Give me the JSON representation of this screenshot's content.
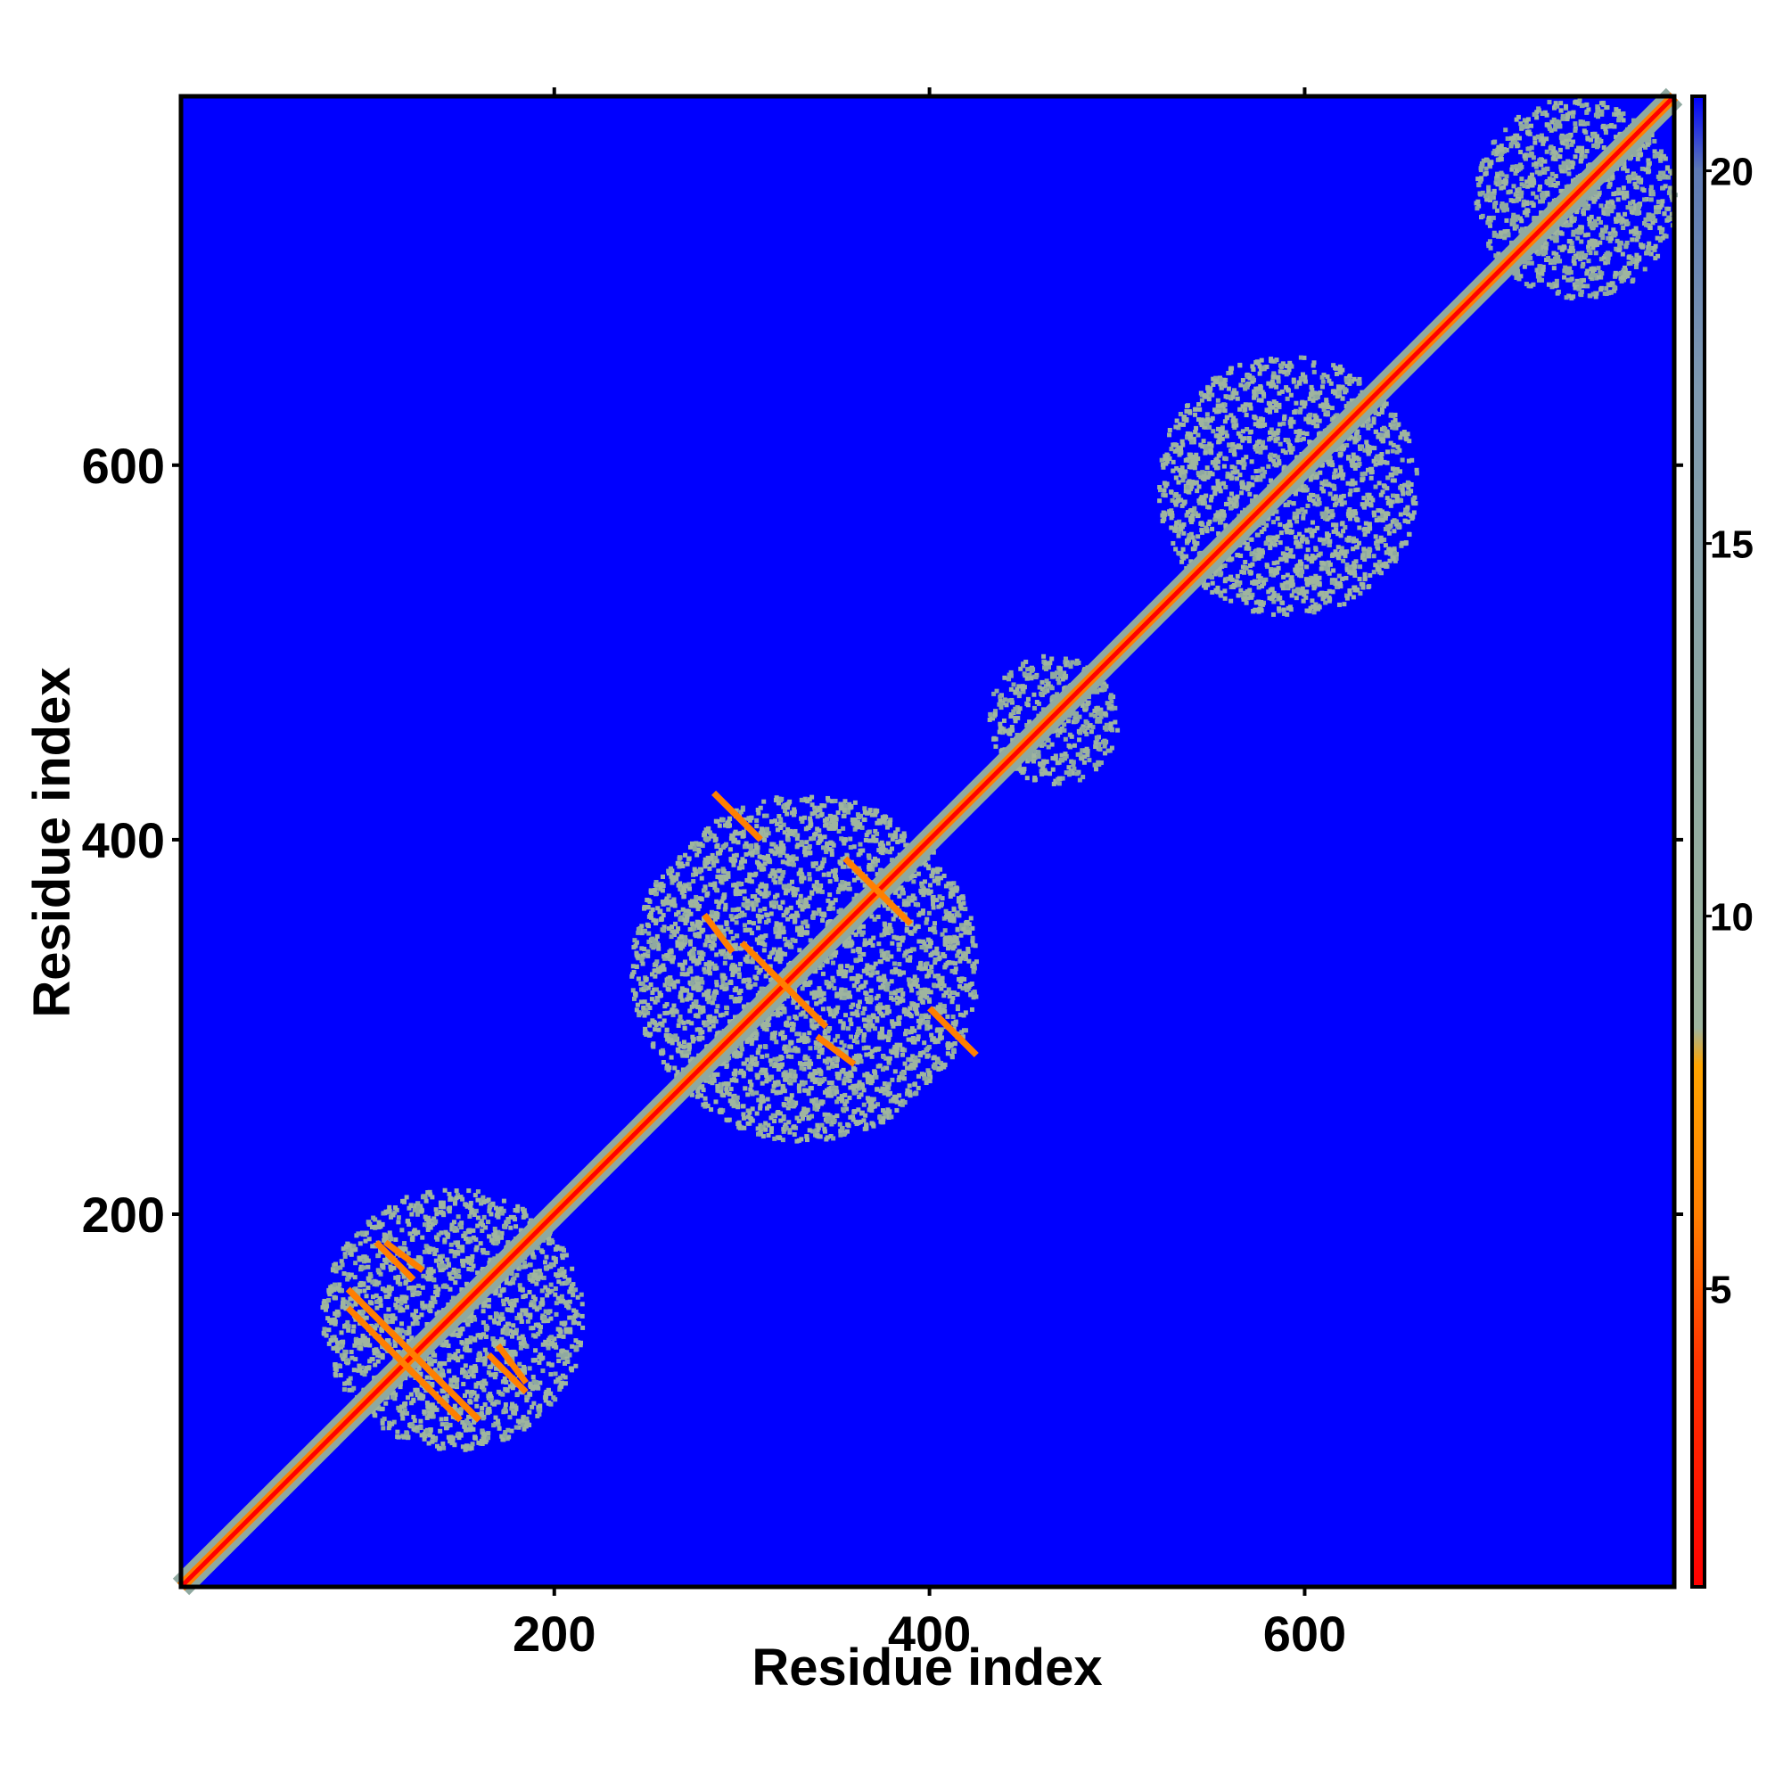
{
  "chart_data": {
    "type": "heatmap",
    "title": "",
    "xlabel": "Residue index",
    "ylabel": "Residue index",
    "xlim": [
      1,
      797
    ],
    "ylim": [
      1,
      797
    ],
    "x_ticks": [
      200,
      400,
      600
    ],
    "y_ticks": [
      200,
      400,
      600
    ],
    "background_value": 21,
    "background_color": "#0000ff",
    "colorbar": {
      "range": [
        1,
        21
      ],
      "ticks": [
        5,
        10,
        15,
        20
      ],
      "stops": [
        {
          "value": 1,
          "color": "#ff0000"
        },
        {
          "value": 4,
          "color": "#ff3300"
        },
        {
          "value": 6,
          "color": "#ff7f00"
        },
        {
          "value": 8,
          "color": "#ffa500"
        },
        {
          "value": 8.5,
          "color": "#9fb59f"
        },
        {
          "value": 12,
          "color": "#8fa9a0"
        },
        {
          "value": 17,
          "color": "#7f9ab0"
        },
        {
          "value": 20,
          "color": "#5e7ab5"
        },
        {
          "value": 21,
          "color": "#0000ff"
        }
      ]
    },
    "diagonal": {
      "start": 1,
      "end": 797,
      "value": 2
    },
    "contact_blocks": [
      {
        "x": [
          75,
          215
        ],
        "y": [
          75,
          215
        ],
        "value": 11
      },
      {
        "x": [
          240,
          425
        ],
        "y": [
          240,
          425
        ],
        "value": 11
      },
      {
        "x": [
          430,
          500
        ],
        "y": [
          430,
          500
        ],
        "value": 12
      },
      {
        "x": [
          520,
          660
        ],
        "y": [
          520,
          660
        ],
        "value": 11
      },
      {
        "x": [
          690,
          797
        ],
        "y": [
          690,
          797
        ],
        "value": 12
      }
    ],
    "antiparallel_strands": [
      {
        "x": [
          90,
          160
        ],
        "y": [
          160,
          90
        ],
        "value": 6
      },
      {
        "x": [
          105,
          150
        ],
        "y": [
          135,
          90
        ],
        "value": 6
      },
      {
        "x": [
          165,
          185
        ],
        "y": [
          125,
          105
        ],
        "value": 6
      },
      {
        "x": [
          110,
          130
        ],
        "y": [
          185,
          170
        ],
        "value": 6
      },
      {
        "x": [
          285,
          310
        ],
        "y": [
          425,
          400
        ],
        "value": 6
      },
      {
        "x": [
          300,
          330
        ],
        "y": [
          345,
          315
        ],
        "value": 6
      },
      {
        "x": [
          355,
          385
        ],
        "y": [
          390,
          360
        ],
        "value": 6
      },
      {
        "x": [
          400,
          425
        ],
        "y": [
          310,
          285
        ],
        "value": 6
      },
      {
        "x": [
          340,
          360
        ],
        "y": [
          295,
          280
        ],
        "value": 6
      }
    ]
  }
}
